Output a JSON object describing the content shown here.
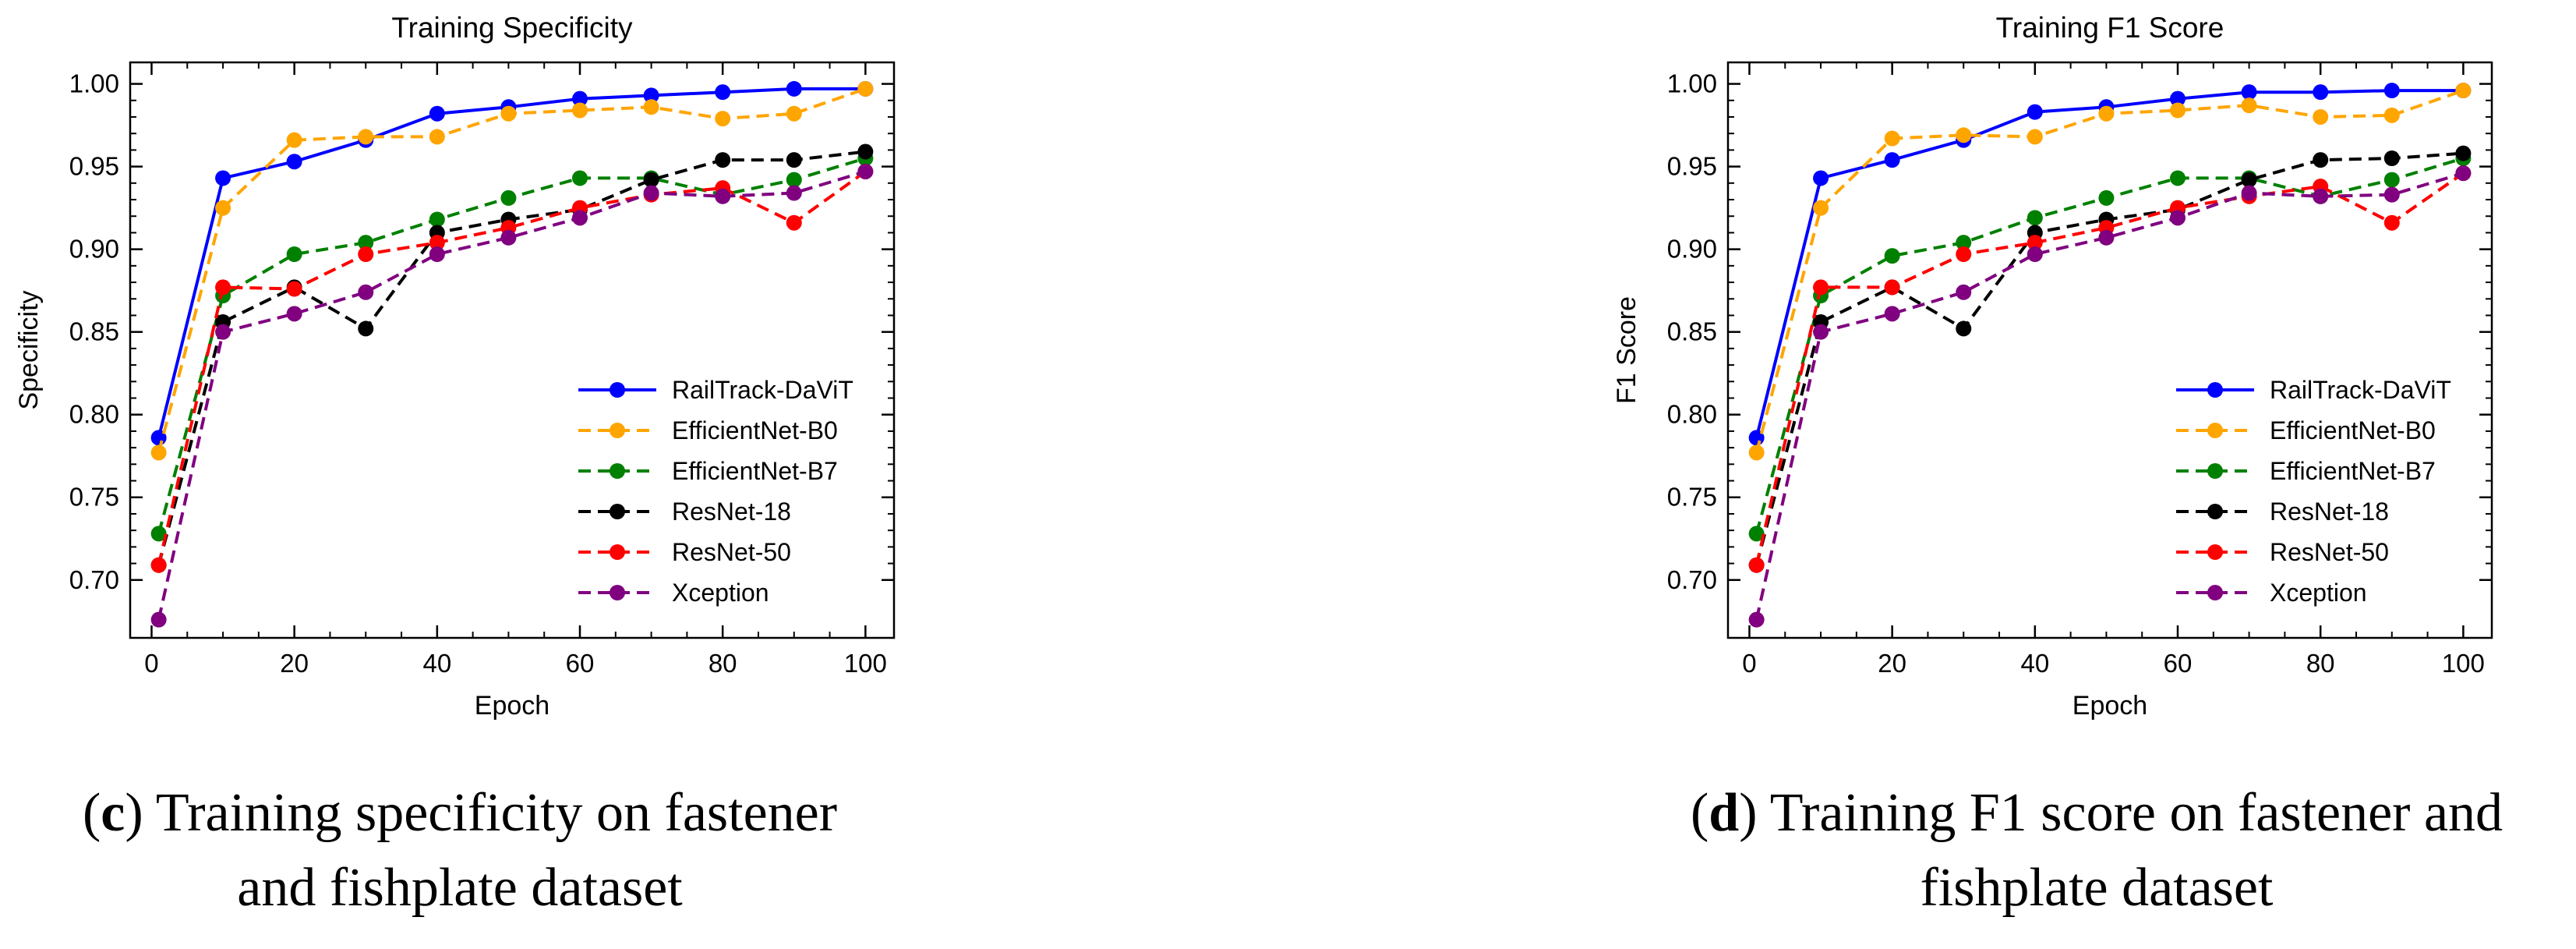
{
  "chart_data": [
    {
      "type": "line",
      "title": "Training Specificity",
      "xlabel": "Epoch",
      "ylabel": "Specificity",
      "xlim": [
        -3,
        104
      ],
      "ylim": [
        0.665,
        1.013
      ],
      "xticks": [
        0,
        20,
        40,
        60,
        80,
        100
      ],
      "xtick_labels": [
        "0",
        "20",
        "40",
        "60",
        "80",
        "100"
      ],
      "yticks": [
        0.7,
        0.75,
        0.8,
        0.85,
        0.9,
        0.95,
        1.0
      ],
      "ytick_labels": [
        "0.70",
        "0.75",
        "0.80",
        "0.85",
        "0.90",
        "0.95",
        "1.00"
      ],
      "grid": false,
      "legend": "center-right",
      "x": [
        1,
        10,
        20,
        30,
        40,
        50,
        60,
        70,
        80,
        90,
        100
      ],
      "series": [
        {
          "name": "RailTrack-DaViT",
          "color": "#0000ff",
          "style": "solid",
          "values": [
            0.786,
            0.943,
            0.953,
            0.966,
            0.982,
            0.986,
            0.991,
            0.993,
            0.995,
            0.997,
            0.997
          ]
        },
        {
          "name": "EfficientNet-B0",
          "color": "#ffa500",
          "style": "dashed",
          "values": [
            0.777,
            0.925,
            0.966,
            0.968,
            0.968,
            0.982,
            0.984,
            0.986,
            0.979,
            0.982,
            0.997
          ]
        },
        {
          "name": "EfficientNet-B7",
          "color": "#008000",
          "style": "dashed",
          "values": [
            0.728,
            0.872,
            0.897,
            0.904,
            0.918,
            0.931,
            0.943,
            0.943,
            0.933,
            0.942,
            0.955
          ]
        },
        {
          "name": "ResNet-18",
          "color": "#000000",
          "style": "dashed",
          "values": [
            0.709,
            0.856,
            0.877,
            0.852,
            0.91,
            0.918,
            0.924,
            0.942,
            0.954,
            0.954,
            0.959
          ]
        },
        {
          "name": "ResNet-50",
          "color": "#ff0000",
          "style": "dashed",
          "values": [
            0.709,
            0.877,
            0.876,
            0.897,
            0.904,
            0.913,
            0.925,
            0.933,
            0.937,
            0.916,
            0.947
          ]
        },
        {
          "name": "Xception",
          "color": "#800080",
          "style": "dashed",
          "values": [
            0.676,
            0.85,
            0.861,
            0.874,
            0.897,
            0.907,
            0.919,
            0.934,
            0.932,
            0.934,
            0.947
          ]
        }
      ]
    },
    {
      "type": "line",
      "title": "Training F1 Score",
      "xlabel": "Epoch",
      "ylabel": "F1 Score",
      "xlim": [
        -3,
        104
      ],
      "ylim": [
        0.665,
        1.013
      ],
      "xticks": [
        0,
        20,
        40,
        60,
        80,
        100
      ],
      "xtick_labels": [
        "0",
        "20",
        "40",
        "60",
        "80",
        "100"
      ],
      "yticks": [
        0.7,
        0.75,
        0.8,
        0.85,
        0.9,
        0.95,
        1.0
      ],
      "ytick_labels": [
        "0.70",
        "0.75",
        "0.80",
        "0.85",
        "0.90",
        "0.95",
        "1.00"
      ],
      "grid": false,
      "legend": "center-right",
      "x": [
        1,
        10,
        20,
        30,
        40,
        50,
        60,
        70,
        80,
        90,
        100
      ],
      "series": [
        {
          "name": "RailTrack-DaViT",
          "color": "#0000ff",
          "style": "solid",
          "values": [
            0.786,
            0.943,
            0.954,
            0.966,
            0.983,
            0.986,
            0.991,
            0.995,
            0.995,
            0.996,
            0.996
          ]
        },
        {
          "name": "EfficientNet-B0",
          "color": "#ffa500",
          "style": "dashed",
          "values": [
            0.777,
            0.925,
            0.967,
            0.969,
            0.968,
            0.982,
            0.984,
            0.987,
            0.98,
            0.981,
            0.996
          ]
        },
        {
          "name": "EfficientNet-B7",
          "color": "#008000",
          "style": "dashed",
          "values": [
            0.728,
            0.872,
            0.896,
            0.904,
            0.919,
            0.931,
            0.943,
            0.943,
            0.932,
            0.942,
            0.955
          ]
        },
        {
          "name": "ResNet-18",
          "color": "#000000",
          "style": "dashed",
          "values": [
            0.709,
            0.856,
            0.877,
            0.852,
            0.91,
            0.918,
            0.924,
            0.942,
            0.954,
            0.955,
            0.958
          ]
        },
        {
          "name": "ResNet-50",
          "color": "#ff0000",
          "style": "dashed",
          "values": [
            0.709,
            0.877,
            0.877,
            0.897,
            0.904,
            0.913,
            0.925,
            0.932,
            0.938,
            0.916,
            0.946
          ]
        },
        {
          "name": "Xception",
          "color": "#800080",
          "style": "dashed",
          "values": [
            0.676,
            0.85,
            0.861,
            0.874,
            0.897,
            0.907,
            0.919,
            0.934,
            0.932,
            0.933,
            0.946
          ]
        }
      ]
    }
  ],
  "captions": [
    {
      "label": "c",
      "text": " Training specificity on fastener",
      "text2": "and fishplate dataset"
    },
    {
      "label": "d",
      "text": " Training F1 score on fastener and",
      "text2": "fishplate dataset"
    }
  ]
}
